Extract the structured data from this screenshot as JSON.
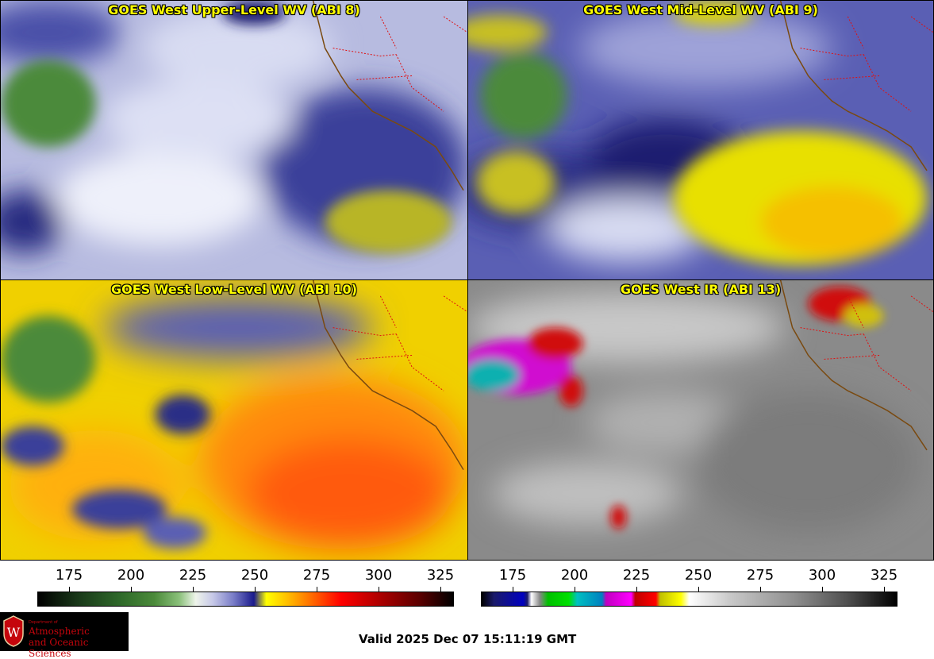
{
  "panels": [
    {
      "title": "GOES West Upper-Level WV (ABI 8)"
    },
    {
      "title": "GOES West Mid-Level WV (ABI 9)"
    },
    {
      "title": "GOES West Low-Level WV (ABI 10)"
    },
    {
      "title": "GOES West IR (ABI 13)"
    }
  ],
  "colorbars": {
    "wv": {
      "ticks": [
        "175",
        "200",
        "225",
        "250",
        "275",
        "300",
        "325"
      ]
    },
    "ir": {
      "ticks": [
        "175",
        "200",
        "225",
        "250",
        "275",
        "300",
        "325"
      ]
    }
  },
  "logo": {
    "line1": "Department of",
    "line2": "Atmospheric",
    "line3": "and Oceanic Sciences"
  },
  "valid_time": "Valid 2025 Dec 07 15:11:19 GMT",
  "colors": {
    "wv_dry": "#ffff00",
    "wv_moist": "#1a1a8c",
    "ir_cloud": "#f0f0f0",
    "border_state": "#e01010",
    "coast": "#7a4a10"
  }
}
